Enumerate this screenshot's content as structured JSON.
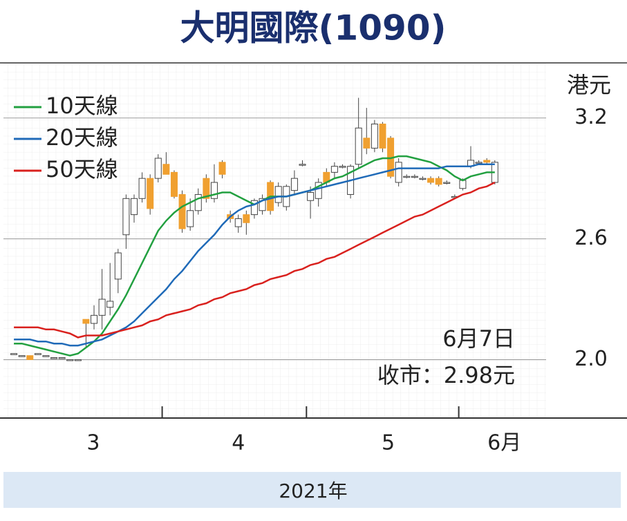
{
  "chart_data": {
    "type": "candlestick",
    "title": "大明國際(1090)",
    "y_unit": "港元",
    "x_axis_label": "2021年",
    "annotations": [
      "6月7日",
      "收市：2.98元"
    ],
    "legend": "upper left",
    "grid": true,
    "up_color": "#ffffff",
    "down_color": "#f0a030",
    "x": [
      0,
      1,
      2,
      3,
      4,
      5,
      6,
      7,
      8,
      9,
      10,
      11,
      12,
      13,
      14,
      15,
      16,
      17,
      18,
      19,
      20,
      21,
      22,
      23,
      24,
      25,
      26,
      27,
      28,
      29,
      30,
      31,
      32,
      33,
      34,
      35,
      36,
      37,
      38,
      39,
      40,
      41,
      42,
      43,
      44,
      45,
      46,
      47,
      48,
      49,
      50,
      51,
      52,
      53,
      54,
      55,
      56,
      57,
      58,
      59,
      60
    ],
    "open": [
      2.03,
      2.02,
      2.02,
      2.03,
      2.02,
      2.01,
      2.01,
      2.0,
      2.0,
      2.2,
      2.18,
      2.22,
      2.26,
      2.4,
      2.62,
      2.72,
      2.8,
      2.9,
      2.9,
      2.97,
      2.93,
      2.82,
      2.66,
      2.74,
      2.9,
      2.8,
      2.98,
      2.72,
      2.66,
      2.72,
      2.72,
      2.74,
      2.88,
      2.78,
      2.76,
      2.84,
      2.97,
      2.79,
      2.8,
      2.93,
      2.93,
      2.96,
      2.82,
      2.97,
      3.1,
      3.05,
      3.17,
      3.1,
      2.88,
      2.91,
      2.91,
      2.9,
      2.9,
      2.9,
      2.88,
      2.81,
      2.85,
      2.96,
      2.98,
      2.99,
      2.88
    ],
    "high": [
      2.03,
      2.02,
      2.02,
      2.03,
      2.02,
      2.01,
      2.01,
      2.0,
      2.0,
      2.2,
      2.27,
      2.45,
      2.48,
      2.55,
      2.82,
      2.82,
      2.93,
      2.92,
      3.02,
      3.03,
      2.94,
      2.84,
      2.8,
      2.85,
      2.92,
      2.97,
      2.99,
      2.74,
      2.72,
      2.74,
      2.8,
      2.82,
      2.89,
      2.88,
      2.87,
      2.94,
      2.99,
      2.86,
      2.9,
      2.95,
      2.98,
      2.97,
      2.97,
      3.3,
      3.25,
      3.19,
      3.18,
      3.11,
      3.0,
      2.92,
      2.92,
      2.91,
      2.91,
      2.91,
      2.89,
      2.82,
      2.9,
      3.06,
      2.99,
      3.0,
      2.99
    ],
    "low": [
      2.03,
      2.02,
      2.0,
      2.03,
      2.02,
      2.01,
      2.01,
      2.0,
      2.0,
      2.06,
      2.15,
      2.15,
      2.22,
      2.33,
      2.55,
      2.68,
      2.78,
      2.72,
      2.88,
      2.92,
      2.8,
      2.63,
      2.64,
      2.72,
      2.78,
      2.78,
      2.9,
      2.68,
      2.63,
      2.62,
      2.7,
      2.72,
      2.72,
      2.76,
      2.74,
      2.82,
      2.96,
      2.7,
      2.76,
      2.86,
      2.9,
      2.95,
      2.8,
      2.95,
      3.02,
      3.03,
      3.03,
      2.9,
      2.86,
      2.9,
      2.9,
      2.89,
      2.87,
      2.86,
      2.87,
      2.8,
      2.84,
      2.95,
      2.97,
      2.97,
      2.87
    ],
    "close": [
      2.03,
      2.02,
      2.0,
      2.03,
      2.02,
      2.01,
      2.01,
      2.0,
      2.0,
      2.18,
      2.22,
      2.3,
      2.29,
      2.53,
      2.8,
      2.8,
      2.9,
      2.75,
      3.0,
      2.92,
      2.81,
      2.65,
      2.74,
      2.82,
      2.8,
      2.88,
      2.92,
      2.7,
      2.7,
      2.68,
      2.79,
      2.8,
      2.74,
      2.86,
      2.86,
      2.9,
      2.97,
      2.83,
      2.88,
      2.88,
      2.96,
      2.96,
      2.96,
      3.15,
      3.05,
      3.17,
      3.05,
      2.91,
      2.98,
      2.91,
      2.91,
      2.9,
      2.88,
      2.87,
      2.88,
      2.81,
      2.89,
      2.99,
      2.98,
      2.98,
      2.98
    ],
    "series": [
      {
        "name": "10天線",
        "color": "#22a040",
        "values": [
          2.08,
          2.08,
          2.07,
          2.06,
          2.05,
          2.04,
          2.03,
          2.02,
          2.03,
          2.06,
          2.09,
          2.13,
          2.19,
          2.25,
          2.32,
          2.4,
          2.48,
          2.56,
          2.64,
          2.69,
          2.73,
          2.76,
          2.78,
          2.8,
          2.81,
          2.82,
          2.83,
          2.83,
          2.81,
          2.79,
          2.77,
          2.79,
          2.81,
          2.81,
          2.81,
          2.82,
          2.83,
          2.84,
          2.86,
          2.88,
          2.9,
          2.91,
          2.93,
          2.95,
          2.97,
          2.99,
          3.0,
          3.0,
          3.01,
          3.01,
          3.0,
          2.99,
          2.98,
          2.96,
          2.94,
          2.91,
          2.89,
          2.91,
          2.92,
          2.93,
          2.93
        ]
      },
      {
        "name": "20天線",
        "color": "#1f6ab8",
        "values": [
          2.1,
          2.1,
          2.1,
          2.09,
          2.09,
          2.08,
          2.08,
          2.07,
          2.07,
          2.08,
          2.09,
          2.1,
          2.12,
          2.14,
          2.16,
          2.19,
          2.23,
          2.27,
          2.31,
          2.35,
          2.4,
          2.44,
          2.49,
          2.54,
          2.58,
          2.62,
          2.67,
          2.71,
          2.74,
          2.76,
          2.77,
          2.79,
          2.8,
          2.81,
          2.81,
          2.82,
          2.83,
          2.84,
          2.85,
          2.86,
          2.87,
          2.88,
          2.89,
          2.9,
          2.91,
          2.92,
          2.93,
          2.94,
          2.95,
          2.95,
          2.95,
          2.95,
          2.95,
          2.95,
          2.96,
          2.96,
          2.96,
          2.96,
          2.97,
          2.97,
          2.97
        ]
      },
      {
        "name": "50天線",
        "color": "#d9211e",
        "values": [
          2.16,
          2.16,
          2.16,
          2.16,
          2.15,
          2.15,
          2.14,
          2.13,
          2.11,
          2.12,
          2.12,
          2.12,
          2.13,
          2.14,
          2.15,
          2.16,
          2.17,
          2.19,
          2.2,
          2.22,
          2.23,
          2.24,
          2.25,
          2.27,
          2.28,
          2.3,
          2.31,
          2.33,
          2.34,
          2.35,
          2.37,
          2.38,
          2.4,
          2.41,
          2.42,
          2.44,
          2.45,
          2.47,
          2.48,
          2.5,
          2.51,
          2.53,
          2.55,
          2.57,
          2.59,
          2.61,
          2.63,
          2.65,
          2.67,
          2.69,
          2.71,
          2.72,
          2.74,
          2.76,
          2.78,
          2.8,
          2.82,
          2.83,
          2.85,
          2.86,
          2.88
        ]
      }
    ],
    "xlim": [
      -1.3,
      66.4
    ],
    "ylim": [
      1.71,
      3.47
    ],
    "yticks": [
      {
        "value": 2,
        "label": "2.0"
      },
      2.6,
      3.2
    ],
    "xticks": [
      {
        "value": 9.9,
        "label": "3"
      },
      {
        "value": 28,
        "label": "4"
      },
      {
        "value": 46.7,
        "label": "5"
      },
      {
        "value": 61.2,
        "label": "6月"
      }
    ],
    "x_boundaries": [
      18.5,
      36.5,
      55.5
    ]
  }
}
